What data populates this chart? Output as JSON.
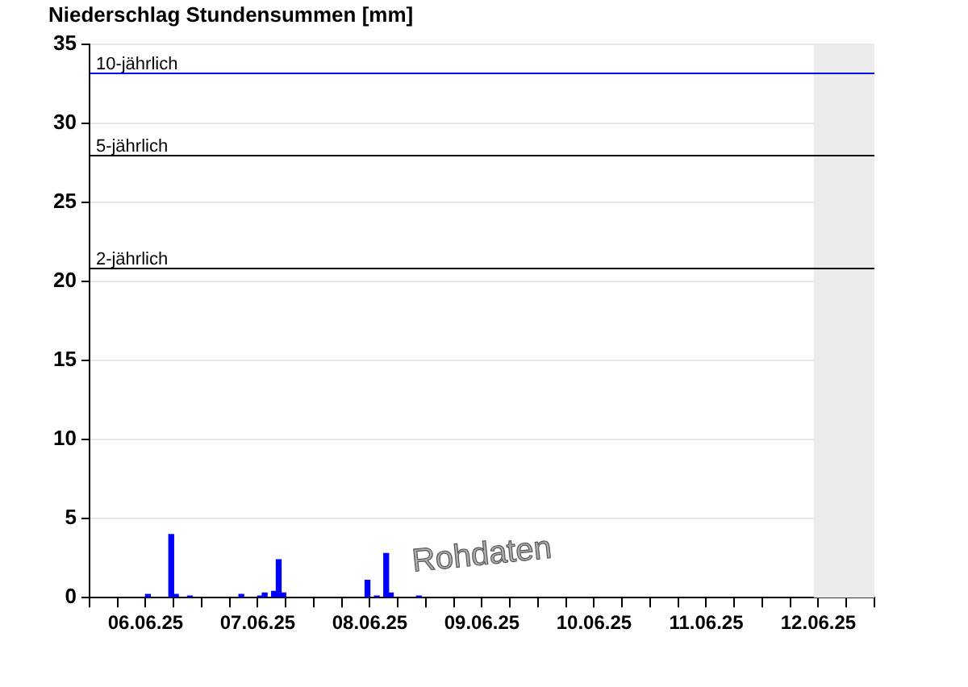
{
  "chart_data": {
    "type": "bar",
    "title": "Niederschlag Stundensummen [mm]",
    "x": [
      "--06-06T12:30",
      "--06-06T17:30",
      "--06-06T18:30",
      "--06-06T21:30",
      "--06-07T08:30",
      "--06-07T12:30",
      "--06-07T13:30",
      "--06-07T15:30",
      "--06-07T16:30",
      "--06-07T17:30",
      "--06-08T11:30",
      "--06-08T13:30",
      "--06-08T15:30",
      "--06-08T16:30",
      "--06-08T22:30"
    ],
    "values": [
      0.2,
      4.0,
      0.2,
      0.1,
      0.2,
      0.1,
      0.3,
      0.4,
      2.4,
      0.3,
      1.1,
      0.1,
      2.8,
      0.3,
      0.1
    ],
    "color": "#0000ff",
    "xlim": [
      "--06-06T00:00",
      "--06-13T00:00"
    ],
    "xticks": [
      {
        "value": "--06-06T00:00",
        "label": null
      },
      {
        "value": "--06-06T06:00",
        "label": null
      },
      {
        "value": "--06-06T12:00",
        "label": "06.06.25"
      },
      {
        "value": "--06-06T18:00",
        "label": null
      },
      {
        "value": "--06-07T00:00",
        "label": null
      },
      {
        "value": "--06-07T06:00",
        "label": null
      },
      {
        "value": "--06-07T12:00",
        "label": "07.06.25"
      },
      {
        "value": "--06-07T18:00",
        "label": null
      },
      {
        "value": "--06-08T00:00",
        "label": null
      },
      {
        "value": "--06-08T06:00",
        "label": null
      },
      {
        "value": "--06-08T12:00",
        "label": "08.06.25"
      },
      {
        "value": "--06-08T18:00",
        "label": null
      },
      {
        "value": "--06-09T00:00",
        "label": null
      },
      {
        "value": "--06-09T06:00",
        "label": null
      },
      {
        "value": "--06-09T12:00",
        "label": "09.06.25"
      },
      {
        "value": "--06-09T18:00",
        "label": null
      },
      {
        "value": "--06-10T00:00",
        "label": null
      },
      {
        "value": "--06-10T06:00",
        "label": null
      },
      {
        "value": "--06-10T12:00",
        "label": "10.06.25"
      },
      {
        "value": "--06-10T18:00",
        "label": null
      },
      {
        "value": "--06-11T00:00",
        "label": null
      },
      {
        "value": "--06-11T06:00",
        "label": null
      },
      {
        "value": "--06-11T12:00",
        "label": "11.06.25"
      },
      {
        "value": "--06-11T18:00",
        "label": null
      },
      {
        "value": "--06-12T00:00",
        "label": null
      },
      {
        "value": "--06-12T06:00",
        "label": null
      },
      {
        "value": "--06-12T12:00",
        "label": "12.06.25"
      },
      {
        "value": "--06-12T18:00",
        "label": null
      },
      {
        "value": "--06-13T00:00",
        "label": null
      }
    ],
    "ylim": [
      0,
      35
    ],
    "yticks": [
      0,
      5,
      10,
      15,
      20,
      25,
      30,
      35
    ],
    "grid": "y",
    "legend": false,
    "ref_lines": [
      {
        "axis": "y",
        "value": 33.2,
        "label": "10-jährlich",
        "color": "#0000ff"
      },
      {
        "axis": "y",
        "value": 28.0,
        "label": "5-jährlich",
        "color": "#000000"
      },
      {
        "axis": "y",
        "value": 20.9,
        "label": "2-jährlich",
        "color": "#000000"
      }
    ],
    "bands": [
      {
        "axis": "x",
        "from": "--06-12T11:00",
        "to": "--06-13T00:00",
        "color": "#ececec"
      }
    ],
    "annotations": [
      "Rohdaten"
    ]
  }
}
